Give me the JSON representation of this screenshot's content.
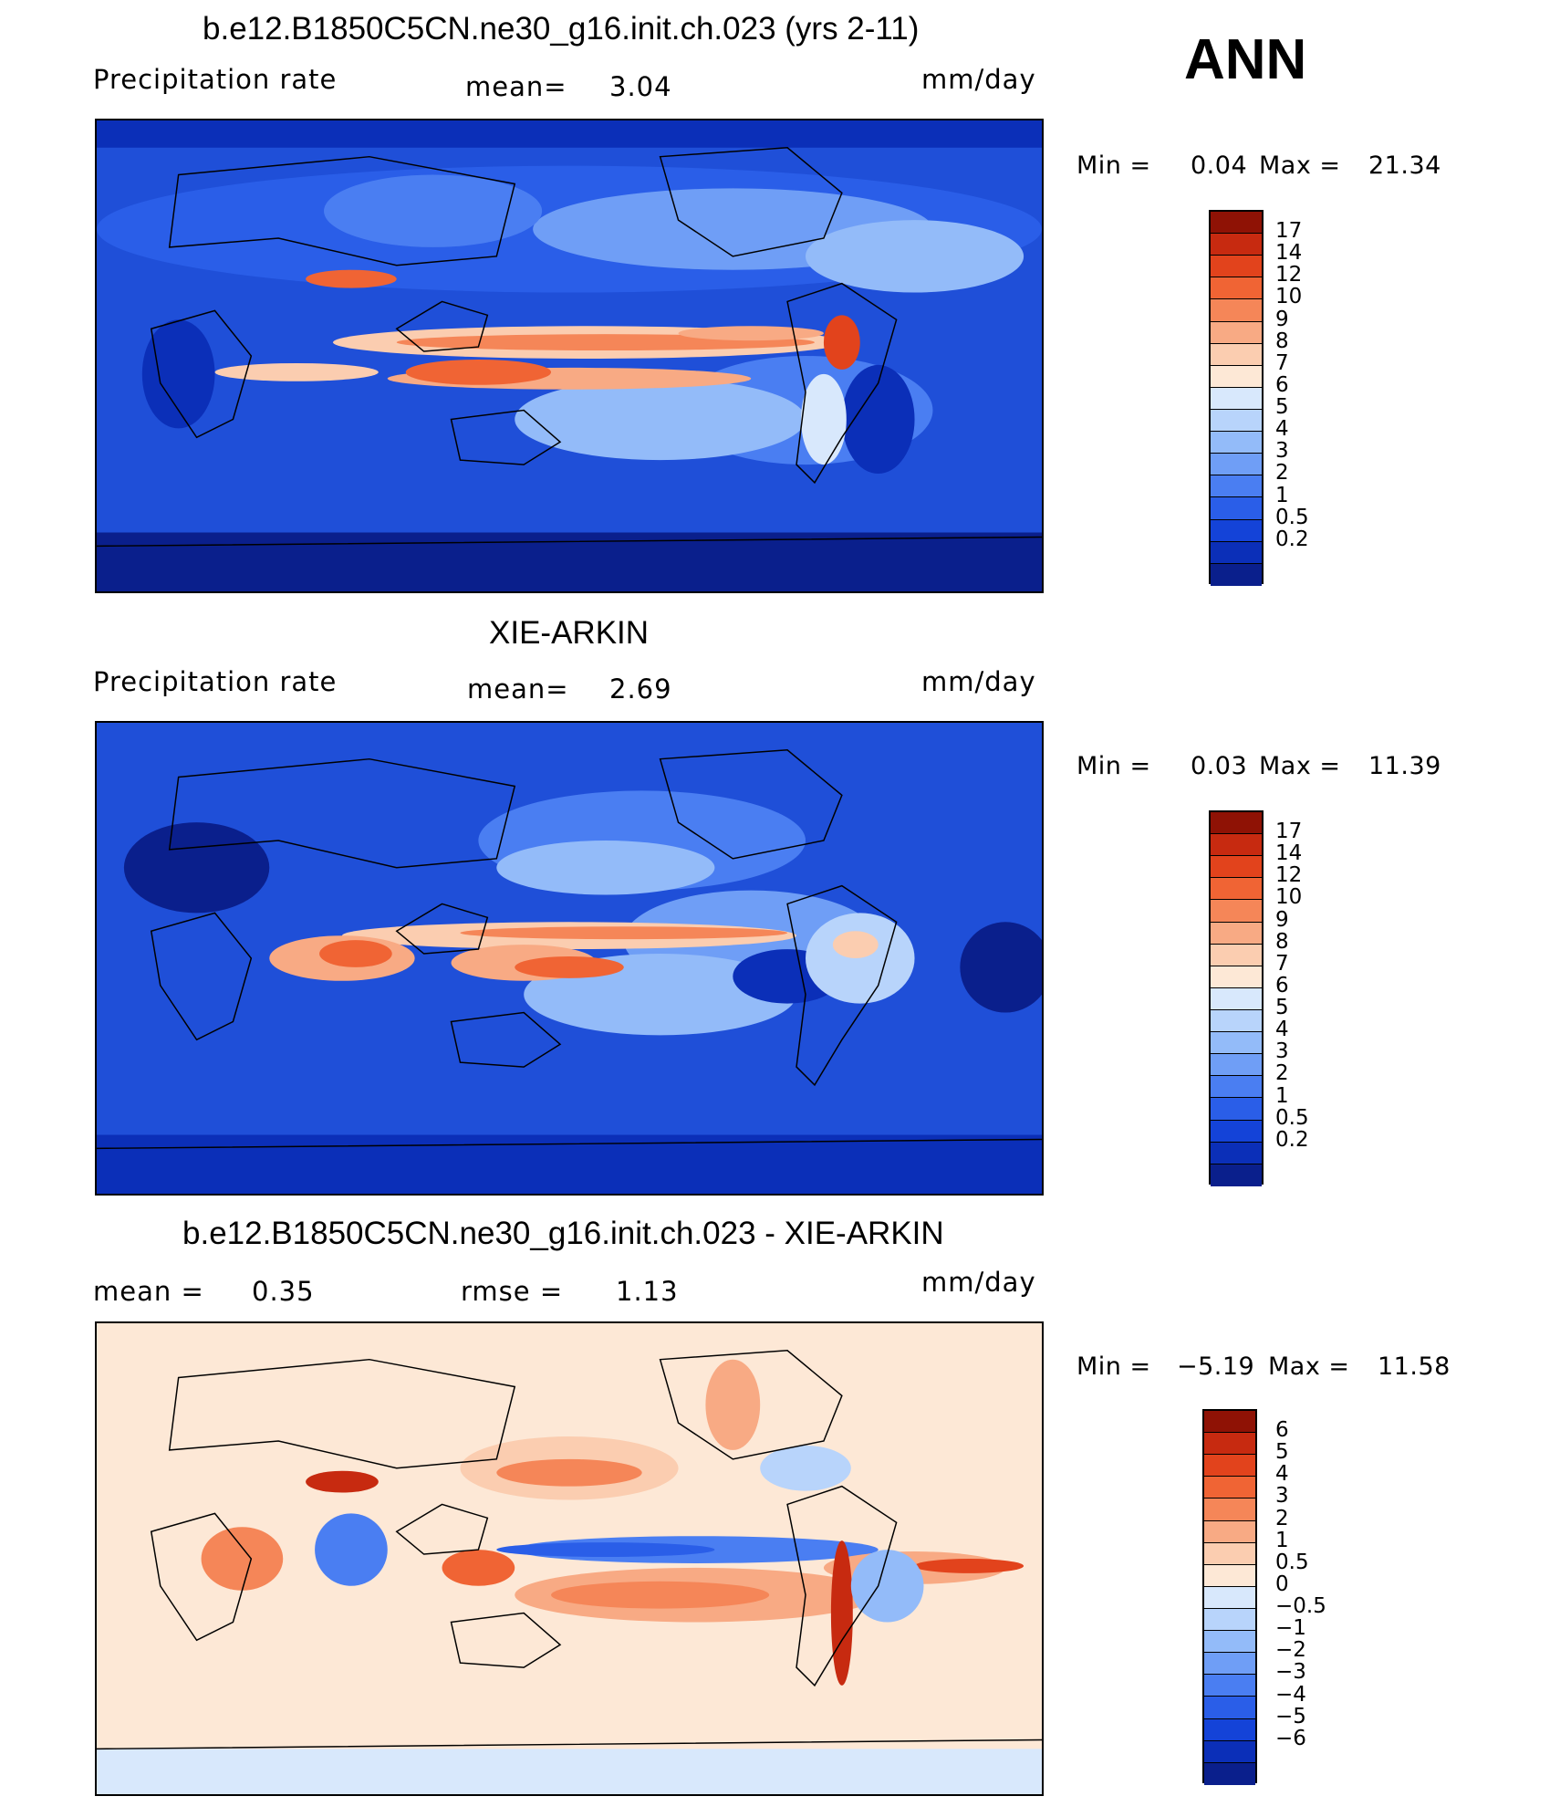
{
  "season": "ANN",
  "blue_red_scale": [
    "#0a1f8c",
    "#0b2fb8",
    "#1443d8",
    "#2a5ee8",
    "#4a7ef2",
    "#6f9ef6",
    "#93bbf9",
    "#b8d4fb",
    "#d8e8fc",
    "#fde8d6",
    "#fbcdb0",
    "#f8aa84",
    "#f58658",
    "#f06434",
    "#e2431c",
    "#c72a10",
    "#8f1205"
  ],
  "diff_scale": [
    "#0a1f8c",
    "#0b2fb8",
    "#1443d8",
    "#2a5ee8",
    "#4a7ef2",
    "#6f9ef6",
    "#93bbf9",
    "#b8d4fb",
    "#d8e8fc",
    "#fde8d6",
    "#fbcdb0",
    "#f8aa84",
    "#f58658",
    "#f06434",
    "#e2431c",
    "#c72a10",
    "#8f1205"
  ],
  "panels": [
    {
      "title": "b.e12.B1850C5CN.ne30_g16.init.ch.023 (yrs 2-11)",
      "left_label": "Precipitation  rate",
      "center_label": "mean=",
      "center_value": "3.04",
      "units": "mm/day",
      "min_label": "Min  =",
      "min_value": "0.04",
      "max_label": "Max  =",
      "max_value": "21.34",
      "ticks": [
        "17",
        "14",
        "12",
        "10",
        "9",
        "8",
        "7",
        "6",
        "5",
        "4",
        "3",
        "2",
        "1",
        "0.5",
        "0.2"
      ]
    },
    {
      "title": "XIE-ARKIN",
      "left_label": "Precipitation  rate",
      "center_label": "mean=",
      "center_value": "2.69",
      "units": "mm/day",
      "min_label": "Min  =",
      "min_value": "0.03",
      "max_label": "Max  =",
      "max_value": "11.39",
      "ticks": [
        "17",
        "14",
        "12",
        "10",
        "9",
        "8",
        "7",
        "6",
        "5",
        "4",
        "3",
        "2",
        "1",
        "0.5",
        "0.2"
      ]
    },
    {
      "title": "b.e12.B1850C5CN.ne30_g16.init.ch.023 - XIE-ARKIN",
      "left_label": "mean  =",
      "left_value": "0.35",
      "center_label": "rmse  =",
      "center_value": "1.13",
      "units": "mm/day",
      "min_label": "Min  =",
      "min_value": "−5.19",
      "max_label": "Max  =",
      "max_value": "11.58",
      "ticks": [
        "6",
        "5",
        "4",
        "3",
        "2",
        "1",
        "0.5",
        "0",
        "−0.5",
        "−1",
        "−2",
        "−3",
        "−4",
        "−5",
        "−6"
      ]
    }
  ]
}
